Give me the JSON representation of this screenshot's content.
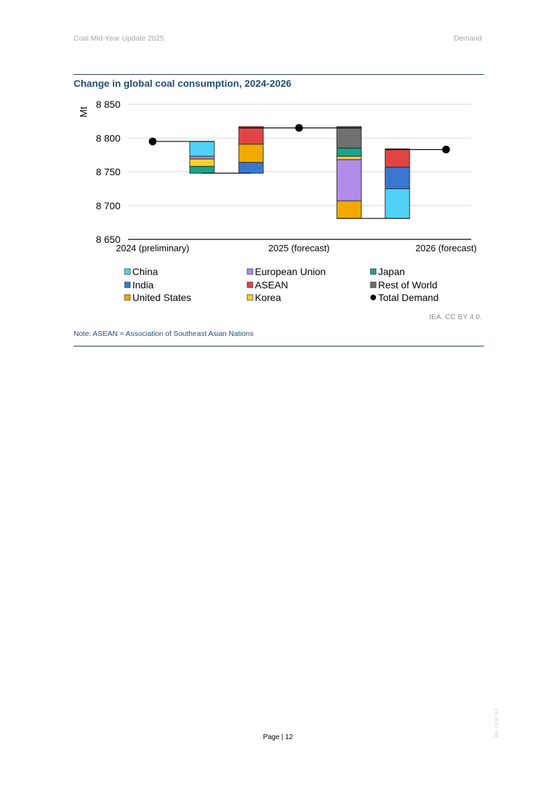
{
  "header": {
    "left": "Coal Mid-Year Update 2025",
    "right": "Demand"
  },
  "figure": {
    "title": "Change in global coal consumption, 2024-2026",
    "source": "IEA. CC BY 4.0.",
    "note": "Note: ASEAN = Association of Southeast Asian Nations"
  },
  "footer": {
    "page": "Page | 12",
    "side_stamp": "IEA. CC BY 4.0."
  },
  "chart_data": {
    "type": "bar",
    "subtype": "waterfall",
    "title": "Change in global coal consumption, 2024-2026",
    "xlabel": "",
    "ylabel": "Mt",
    "ylim": [
      8650,
      8850
    ],
    "yticks": [
      8650,
      8700,
      8750,
      8800,
      8850
    ],
    "ytick_labels": [
      "8 650",
      "8 700",
      "8 750",
      "8 800",
      "8 850"
    ],
    "xtick_labels": [
      "2024 (preliminary)",
      "2025 (forecast)",
      "2026 (forecast)"
    ],
    "grid": true,
    "legend_position": "bottom",
    "totals": [
      {
        "label": "2024 (preliminary)",
        "value": 8795
      },
      {
        "label": "2025 (forecast)",
        "value": 8815
      },
      {
        "label": "2026 (forecast)",
        "value": 8783
      }
    ],
    "series": [
      {
        "name": "China",
        "color": "#4fd1f7"
      },
      {
        "name": "India",
        "color": "#3a77d0"
      },
      {
        "name": "United States",
        "color": "#f2a900"
      },
      {
        "name": "European Union",
        "color": "#b18ce8"
      },
      {
        "name": "ASEAN",
        "color": "#e04545"
      },
      {
        "name": "Korea",
        "color": "#f7d02c"
      },
      {
        "name": "Japan",
        "color": "#1aa38c"
      },
      {
        "name": "Rest of World",
        "color": "#707070"
      },
      {
        "name": "Total Demand",
        "color": "#000000",
        "marker": "circle"
      }
    ],
    "steps": [
      {
        "period": "2024-2025",
        "group": "decreases",
        "segments": [
          {
            "series": "China",
            "change": -22
          },
          {
            "series": "European Union",
            "change": -4
          },
          {
            "series": "Korea",
            "change": -11
          },
          {
            "series": "Japan",
            "change": -10
          }
        ]
      },
      {
        "period": "2024-2025",
        "group": "increases",
        "segments": [
          {
            "series": "India",
            "change": 16
          },
          {
            "series": "United States",
            "change": 27
          },
          {
            "series": "ASEAN",
            "change": 26
          }
        ]
      },
      {
        "period": "2025-2026",
        "group": "decreases",
        "segments": [
          {
            "series": "Rest of World",
            "change": -32
          },
          {
            "series": "Japan",
            "change": -12
          },
          {
            "series": "Korea",
            "change": -5
          },
          {
            "series": "European Union",
            "change": -61
          },
          {
            "series": "United States",
            "change": -26
          }
        ]
      },
      {
        "period": "2025-2026",
        "group": "increases",
        "segments": [
          {
            "series": "China",
            "change": 44
          },
          {
            "series": "India",
            "change": 32
          },
          {
            "series": "ASEAN",
            "change": 27
          }
        ]
      }
    ]
  }
}
